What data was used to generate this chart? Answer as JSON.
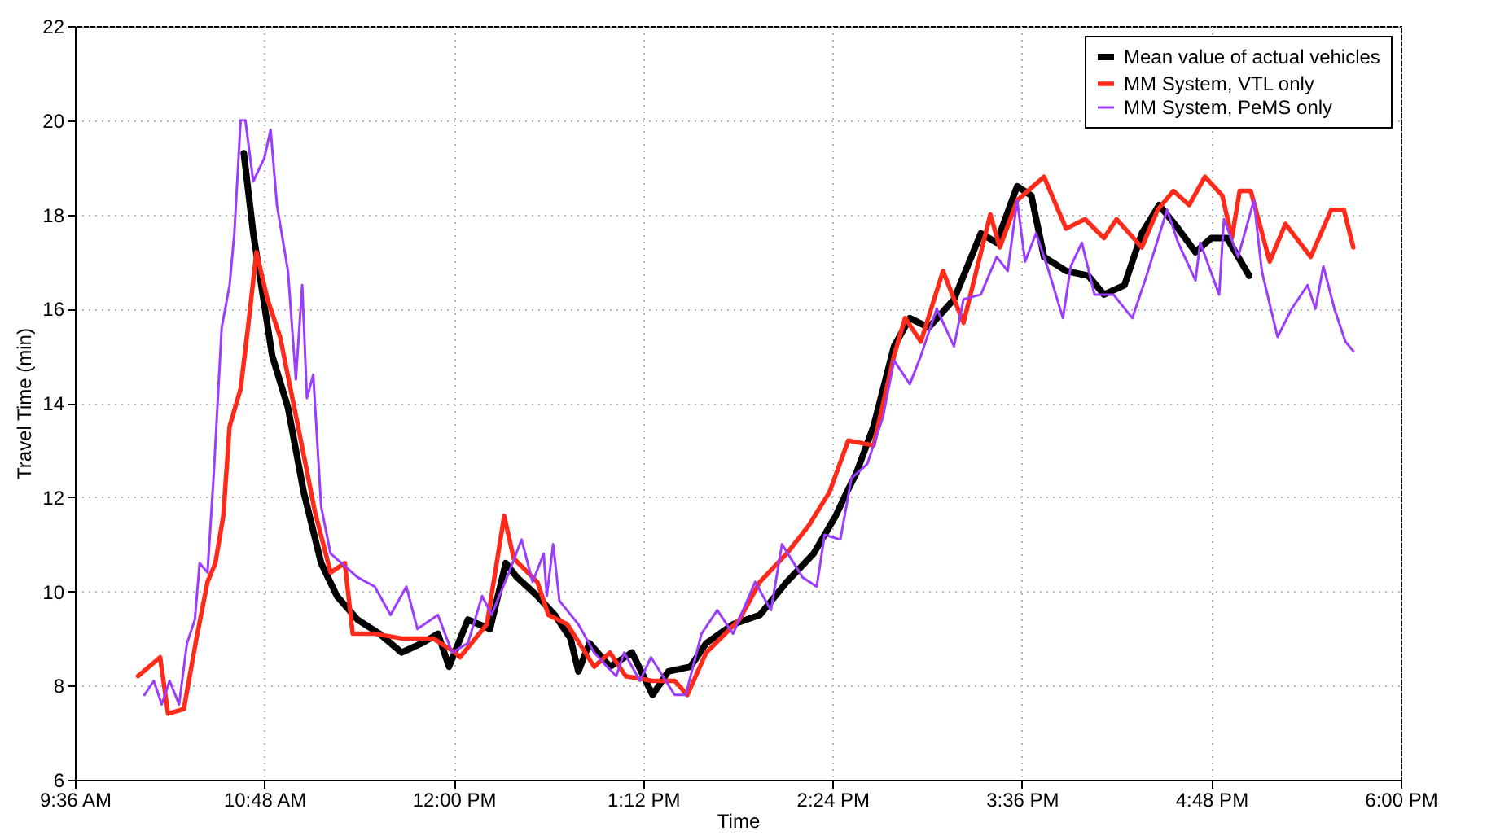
{
  "chart_data": {
    "type": "line",
    "xlabel": "Time",
    "ylabel": "Travel Time (min)",
    "xlim": [
      9.6,
      18.0
    ],
    "ylim": [
      6,
      22
    ],
    "xticks": [
      {
        "value": 9.6,
        "label": "9:36 AM"
      },
      {
        "value": 10.8,
        "label": "10:48 AM"
      },
      {
        "value": 12,
        "label": "12:00 PM"
      },
      {
        "value": 13.2,
        "label": "1:12 PM"
      },
      {
        "value": 14.4,
        "label": "2:24 PM"
      },
      {
        "value": 15.6,
        "label": "3:36 PM"
      },
      {
        "value": 16.8,
        "label": "4:48 PM"
      },
      {
        "value": 18.0,
        "label": "6:00 PM"
      }
    ],
    "yticks": [
      6,
      8,
      10,
      12,
      14,
      16,
      18,
      20,
      22
    ],
    "grid": true,
    "legend": "top right",
    "marker": "none",
    "line_style": "solid",
    "series": [
      {
        "name": "Mean value of actual vehicles",
        "color": "#000000",
        "x": [
          10.67,
          10.73,
          10.85,
          10.95,
          11.05,
          11.16,
          11.26,
          11.39,
          11.53,
          11.67,
          11.8,
          11.9,
          11.97,
          12.09,
          12.23,
          12.33,
          12.4,
          12.53,
          12.64,
          12.74,
          12.79,
          12.86,
          12.99,
          13.13,
          13.26,
          13.36,
          13.5,
          13.6,
          13.77,
          13.94,
          14.11,
          14.28,
          14.42,
          14.49,
          14.55,
          14.66,
          14.79,
          14.89,
          15.01,
          15.17,
          15.34,
          15.44,
          15.57,
          15.66,
          15.74,
          15.88,
          16.02,
          16.12,
          16.25,
          16.36,
          16.47,
          16.59,
          16.7,
          16.8,
          16.9,
          17.04
        ],
        "values": [
          19.3,
          17.6,
          15.0,
          13.9,
          12.1,
          10.6,
          9.9,
          9.4,
          9.1,
          8.7,
          8.9,
          9.1,
          8.4,
          9.4,
          9.2,
          10.6,
          10.3,
          9.9,
          9.5,
          9.0,
          8.3,
          8.9,
          8.4,
          8.7,
          7.8,
          8.3,
          8.4,
          8.9,
          9.3,
          9.5,
          10.2,
          10.8,
          11.6,
          12.1,
          12.5,
          13.5,
          15.2,
          15.8,
          15.6,
          16.2,
          17.6,
          17.4,
          18.6,
          18.4,
          17.1,
          16.8,
          16.7,
          16.3,
          16.5,
          17.6,
          18.2,
          17.7,
          17.2,
          17.5,
          17.5,
          16.7
        ]
      },
      {
        "name": "MM System, VTL only",
        "color": "#ff2a1a",
        "x": [
          10.0,
          10.14,
          10.19,
          10.29,
          10.37,
          10.44,
          10.49,
          10.54,
          10.58,
          10.65,
          10.7,
          10.75,
          10.82,
          10.9,
          11.02,
          11.12,
          11.22,
          11.31,
          11.36,
          11.5,
          11.67,
          11.87,
          12.01,
          12.04,
          12.21,
          12.32,
          12.38,
          12.53,
          12.6,
          12.72,
          12.89,
          12.99,
          13.09,
          13.26,
          13.4,
          13.48,
          13.6,
          13.81,
          13.94,
          14.11,
          14.25,
          14.38,
          14.5,
          14.66,
          14.79,
          14.86,
          14.96,
          15.1,
          15.23,
          15.4,
          15.46,
          15.57,
          15.74,
          15.88,
          16.0,
          16.12,
          16.2,
          16.36,
          16.46,
          16.56,
          16.66,
          16.76,
          16.87,
          16.93,
          16.98,
          17.05,
          17.17,
          17.27,
          17.43,
          17.56,
          17.64,
          17.7
        ],
        "values": [
          8.2,
          8.6,
          7.4,
          7.5,
          9.0,
          10.2,
          10.6,
          11.6,
          13.5,
          14.3,
          15.7,
          17.2,
          16.2,
          15.4,
          13.4,
          11.7,
          10.4,
          10.6,
          9.1,
          9.1,
          9.0,
          9.0,
          8.7,
          8.6,
          9.3,
          11.6,
          10.7,
          10.2,
          9.5,
          9.3,
          8.4,
          8.7,
          8.2,
          8.1,
          8.1,
          7.8,
          8.7,
          9.4,
          10.2,
          10.8,
          11.4,
          12.1,
          13.2,
          13.1,
          15.0,
          15.8,
          15.3,
          16.8,
          15.7,
          18.0,
          17.3,
          18.3,
          18.8,
          17.7,
          17.9,
          17.5,
          17.9,
          17.3,
          18.1,
          18.5,
          18.2,
          18.8,
          18.4,
          17.5,
          18.5,
          18.5,
          17.0,
          17.8,
          17.1,
          18.1,
          18.1,
          17.3
        ]
      },
      {
        "name": "MM System, PeMS only",
        "color": "#9b3cff",
        "x": [
          10.04,
          10.1,
          10.15,
          10.2,
          10.26,
          10.31,
          10.36,
          10.39,
          10.44,
          10.48,
          10.53,
          10.58,
          10.61,
          10.65,
          10.68,
          10.73,
          10.8,
          10.84,
          10.88,
          10.95,
          11.0,
          11.04,
          11.07,
          11.11,
          11.16,
          11.22,
          11.29,
          11.39,
          11.5,
          11.6,
          11.7,
          11.77,
          11.9,
          11.99,
          12.09,
          12.18,
          12.24,
          12.35,
          12.43,
          12.5,
          12.57,
          12.59,
          12.63,
          12.67,
          12.79,
          12.89,
          13.03,
          13.08,
          13.18,
          13.25,
          13.4,
          13.47,
          13.57,
          13.67,
          13.77,
          13.91,
          14.01,
          14.08,
          14.21,
          14.3,
          14.35,
          14.45,
          14.52,
          14.62,
          14.72,
          14.79,
          14.89,
          14.96,
          15.06,
          15.17,
          15.23,
          15.34,
          15.44,
          15.51,
          15.57,
          15.62,
          15.69,
          15.77,
          15.86,
          15.91,
          15.98,
          16.06,
          16.18,
          16.3,
          16.39,
          16.52,
          16.59,
          16.7,
          16.73,
          16.85,
          16.88,
          16.97,
          17.07,
          17.12,
          17.22,
          17.31,
          17.41,
          17.46,
          17.51,
          17.58,
          17.65,
          17.7
        ],
        "values": [
          7.8,
          8.1,
          7.6,
          8.1,
          7.6,
          8.9,
          9.4,
          10.6,
          10.4,
          12.5,
          15.6,
          16.5,
          17.6,
          20.0,
          20.0,
          18.7,
          19.2,
          19.8,
          18.2,
          16.8,
          14.5,
          16.5,
          14.1,
          14.6,
          11.8,
          10.8,
          10.6,
          10.3,
          10.1,
          9.5,
          10.1,
          9.2,
          9.5,
          8.7,
          8.9,
          9.9,
          9.5,
          10.4,
          11.1,
          10.2,
          10.8,
          9.9,
          11.0,
          9.8,
          9.3,
          8.7,
          8.2,
          8.7,
          8.1,
          8.6,
          7.8,
          7.8,
          9.1,
          9.6,
          9.1,
          10.2,
          9.6,
          11.0,
          10.3,
          10.1,
          11.2,
          11.1,
          12.4,
          12.7,
          13.7,
          14.9,
          14.4,
          15.0,
          16.0,
          15.2,
          16.2,
          16.3,
          17.1,
          16.8,
          18.3,
          17.0,
          17.6,
          16.8,
          15.8,
          16.9,
          17.4,
          16.3,
          16.3,
          15.8,
          16.7,
          18.1,
          17.4,
          16.6,
          17.4,
          16.3,
          17.9,
          17.1,
          18.3,
          16.8,
          15.4,
          16.0,
          16.5,
          16.0,
          16.9,
          16.0,
          15.3,
          15.1
        ]
      }
    ]
  }
}
